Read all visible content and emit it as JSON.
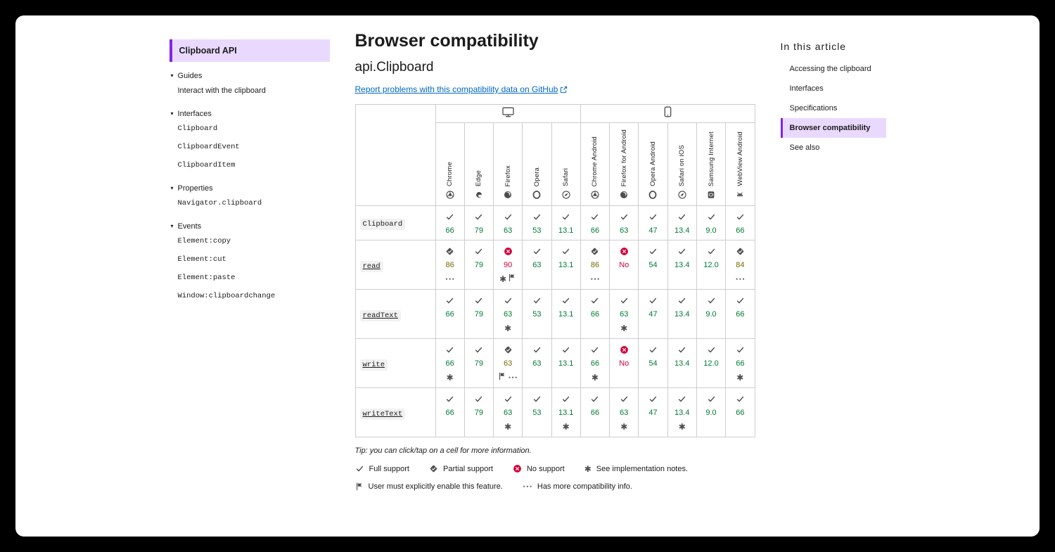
{
  "colors": {
    "accent": "#8224e3",
    "highlight": "#ead9ff",
    "link": "#0069c2",
    "full": "#007936",
    "partial": "#746a00",
    "none": "#d30038",
    "icon": "#4e4e4e",
    "border": "#cdcdcd",
    "text": "#1b1b1b"
  },
  "sidebar": {
    "header": "Clipboard API",
    "sections": [
      {
        "label": "Guides",
        "items": [
          {
            "label": "Interact with the clipboard",
            "mono": false
          }
        ]
      },
      {
        "label": "Interfaces",
        "items": [
          {
            "label": "Clipboard",
            "mono": true
          },
          {
            "label": "ClipboardEvent",
            "mono": true
          },
          {
            "label": "ClipboardItem",
            "mono": true
          }
        ]
      },
      {
        "label": "Properties",
        "items": [
          {
            "label": "Navigator.clipboard",
            "mono": true
          }
        ]
      },
      {
        "label": "Events",
        "items": [
          {
            "label": "Element:copy",
            "mono": true
          },
          {
            "label": "Element:cut",
            "mono": true
          },
          {
            "label": "Element:paste",
            "mono": true
          },
          {
            "label": "Window:clipboardchange",
            "mono": true
          }
        ]
      }
    ]
  },
  "main": {
    "h1": "Browser compatibility",
    "h2": "api.Clipboard",
    "report_link": "Report problems with this compatibility data on GitHub",
    "tip": "Tip: you can click/tap on a cell for more information."
  },
  "table": {
    "groups": [
      {
        "name": "desktop",
        "icon": "desktop",
        "span": 5
      },
      {
        "name": "mobile",
        "icon": "mobile",
        "span": 6
      }
    ],
    "browsers": [
      {
        "name": "Chrome",
        "icon": "chrome"
      },
      {
        "name": "Edge",
        "icon": "edge"
      },
      {
        "name": "Firefox",
        "icon": "firefox"
      },
      {
        "name": "Opera",
        "icon": "opera"
      },
      {
        "name": "Safari",
        "icon": "safari"
      },
      {
        "name": "Chrome Android",
        "icon": "chrome"
      },
      {
        "name": "Firefox for Android",
        "icon": "firefox"
      },
      {
        "name": "Opera Android",
        "icon": "opera"
      },
      {
        "name": "Safari on iOS",
        "icon": "safari"
      },
      {
        "name": "Samsung Internet",
        "icon": "samsung"
      },
      {
        "name": "WebView Android",
        "icon": "webview"
      }
    ],
    "rows": [
      {
        "feature": "Clipboard",
        "link": false,
        "cells": [
          {
            "support": "full",
            "version": "66"
          },
          {
            "support": "full",
            "version": "79"
          },
          {
            "support": "full",
            "version": "63"
          },
          {
            "support": "full",
            "version": "53"
          },
          {
            "support": "full",
            "version": "13.1"
          },
          {
            "support": "full",
            "version": "66"
          },
          {
            "support": "full",
            "version": "63"
          },
          {
            "support": "full",
            "version": "47"
          },
          {
            "support": "full",
            "version": "13.4"
          },
          {
            "support": "full",
            "version": "9.0"
          },
          {
            "support": "full",
            "version": "66"
          }
        ]
      },
      {
        "feature": "read",
        "link": true,
        "cells": [
          {
            "support": "partial",
            "version": "86",
            "notes": [
              "more"
            ]
          },
          {
            "support": "full",
            "version": "79"
          },
          {
            "support": "none",
            "version": "90",
            "notes": [
              "star",
              "flag"
            ]
          },
          {
            "support": "full",
            "version": "63"
          },
          {
            "support": "full",
            "version": "13.1"
          },
          {
            "support": "partial",
            "version": "86",
            "notes": [
              "more"
            ]
          },
          {
            "support": "none",
            "version": "No"
          },
          {
            "support": "full",
            "version": "54"
          },
          {
            "support": "full",
            "version": "13.4"
          },
          {
            "support": "full",
            "version": "12.0"
          },
          {
            "support": "partial",
            "version": "84",
            "notes": [
              "more"
            ]
          }
        ]
      },
      {
        "feature": "readText",
        "link": true,
        "cells": [
          {
            "support": "full",
            "version": "66"
          },
          {
            "support": "full",
            "version": "79"
          },
          {
            "support": "full",
            "version": "63",
            "notes": [
              "star"
            ]
          },
          {
            "support": "full",
            "version": "53"
          },
          {
            "support": "full",
            "version": "13.1"
          },
          {
            "support": "full",
            "version": "66"
          },
          {
            "support": "full",
            "version": "63",
            "notes": [
              "star"
            ]
          },
          {
            "support": "full",
            "version": "47"
          },
          {
            "support": "full",
            "version": "13.4"
          },
          {
            "support": "full",
            "version": "9.0"
          },
          {
            "support": "full",
            "version": "66"
          }
        ]
      },
      {
        "feature": "write",
        "link": true,
        "cells": [
          {
            "support": "full",
            "version": "66",
            "notes": [
              "star"
            ]
          },
          {
            "support": "full",
            "version": "79"
          },
          {
            "support": "partial",
            "version": "63",
            "notes": [
              "flag",
              "more"
            ]
          },
          {
            "support": "full",
            "version": "63"
          },
          {
            "support": "full",
            "version": "13.1"
          },
          {
            "support": "full",
            "version": "66",
            "notes": [
              "star"
            ]
          },
          {
            "support": "none",
            "version": "No"
          },
          {
            "support": "full",
            "version": "54"
          },
          {
            "support": "full",
            "version": "13.4"
          },
          {
            "support": "full",
            "version": "12.0"
          },
          {
            "support": "full",
            "version": "66",
            "notes": [
              "star"
            ]
          }
        ]
      },
      {
        "feature": "writeText",
        "link": true,
        "cells": [
          {
            "support": "full",
            "version": "66"
          },
          {
            "support": "full",
            "version": "79"
          },
          {
            "support": "full",
            "version": "63",
            "notes": [
              "star"
            ]
          },
          {
            "support": "full",
            "version": "53"
          },
          {
            "support": "full",
            "version": "13.1",
            "notes": [
              "star"
            ]
          },
          {
            "support": "full",
            "version": "66"
          },
          {
            "support": "full",
            "version": "63",
            "notes": [
              "star"
            ]
          },
          {
            "support": "full",
            "version": "47"
          },
          {
            "support": "full",
            "version": "13.4",
            "notes": [
              "star"
            ]
          },
          {
            "support": "full",
            "version": "9.0"
          },
          {
            "support": "full",
            "version": "66"
          }
        ]
      }
    ]
  },
  "legend": {
    "rows": [
      [
        {
          "icon": "check",
          "label": "Full support"
        },
        {
          "icon": "partial",
          "label": "Partial support"
        },
        {
          "icon": "none",
          "label": "No support"
        },
        {
          "icon": "star",
          "label": "See implementation notes."
        }
      ],
      [
        {
          "icon": "flag",
          "label": "User must explicitly enable this feature."
        },
        {
          "icon": "more",
          "label": "Has more compatibility info."
        }
      ]
    ]
  },
  "toc": {
    "title": "In this article",
    "items": [
      {
        "label": "Accessing the clipboard",
        "active": false
      },
      {
        "label": "Interfaces",
        "active": false
      },
      {
        "label": "Specifications",
        "active": false
      },
      {
        "label": "Browser compatibility",
        "active": true
      },
      {
        "label": "See also",
        "active": false
      }
    ]
  }
}
